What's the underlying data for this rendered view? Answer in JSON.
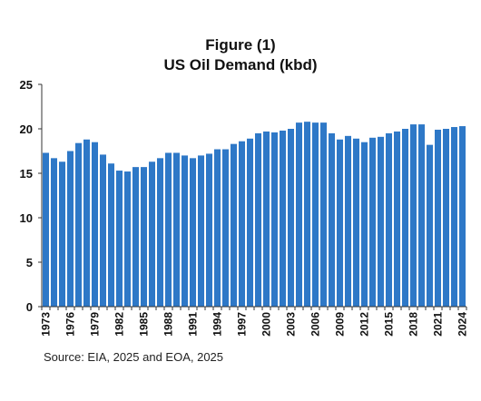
{
  "chart_data": {
    "type": "bar",
    "title": "Figure (1)",
    "subtitle": "US Oil Demand (kbd)",
    "xlabel": "",
    "ylabel": "",
    "ylim": [
      0,
      25
    ],
    "yticks": [
      0,
      5,
      10,
      15,
      20,
      25
    ],
    "grid": false,
    "bar_color": "#2E78C7",
    "categories": [
      1973,
      1974,
      1975,
      1976,
      1977,
      1978,
      1979,
      1980,
      1981,
      1982,
      1983,
      1984,
      1985,
      1986,
      1987,
      1988,
      1989,
      1990,
      1991,
      1992,
      1993,
      1994,
      1995,
      1996,
      1997,
      1998,
      1999,
      2000,
      2001,
      2002,
      2003,
      2004,
      2005,
      2006,
      2007,
      2008,
      2009,
      2010,
      2011,
      2012,
      2013,
      2014,
      2015,
      2016,
      2017,
      2018,
      2019,
      2020,
      2021,
      2022,
      2023,
      2024
    ],
    "x_tick_labels": [
      1973,
      1976,
      1979,
      1982,
      1985,
      1988,
      1991,
      1994,
      1997,
      2000,
      2003,
      2006,
      2009,
      2012,
      2015,
      2018,
      2021,
      2024
    ],
    "values": [
      17.3,
      16.7,
      16.3,
      17.5,
      18.4,
      18.8,
      18.5,
      17.1,
      16.1,
      15.3,
      15.2,
      15.7,
      15.7,
      16.3,
      16.7,
      17.3,
      17.3,
      17.0,
      16.7,
      17.0,
      17.2,
      17.7,
      17.7,
      18.3,
      18.6,
      18.9,
      19.5,
      19.7,
      19.6,
      19.8,
      20.0,
      20.7,
      20.8,
      20.7,
      20.7,
      19.5,
      18.8,
      19.2,
      18.9,
      18.5,
      19.0,
      19.1,
      19.5,
      19.7,
      20.0,
      20.5,
      20.5,
      18.2,
      19.9,
      20.0,
      20.2,
      20.3
    ]
  },
  "source": "Source: EIA, 2025 and  EOA, 2025"
}
